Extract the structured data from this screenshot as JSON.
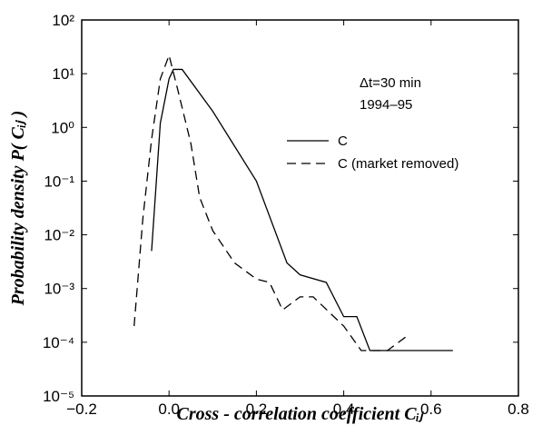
{
  "chart_data": {
    "type": "line",
    "xlabel": "Cross - correlation coefficient Cᵢⱼ",
    "ylabel": "Probability density P( Cᵢⱼ )",
    "annotations": [
      "Δt=30 min",
      "1994–95"
    ],
    "log_y": true,
    "xlim": [
      -0.2,
      0.8
    ],
    "ylim": [
      1e-05,
      100
    ],
    "xticks": [
      {
        "value": -0.2,
        "label": "−0.2"
      },
      {
        "value": 0,
        "label": "0.0"
      },
      0.2,
      0.4,
      0.6,
      0.8
    ],
    "yticks": [
      {
        "value": 1e-05,
        "label": "10⁻⁵"
      },
      {
        "value": 0.0001,
        "label": "10⁻⁴"
      },
      {
        "value": 0.001,
        "label": "10⁻³"
      },
      {
        "value": 0.01,
        "label": "10⁻²"
      },
      {
        "value": 0.1,
        "label": "10⁻¹"
      },
      {
        "value": 1,
        "label": "10⁰"
      },
      {
        "value": 10,
        "label": "10¹"
      },
      {
        "value": 100,
        "label": "10²"
      }
    ],
    "series": [
      {
        "name": "C",
        "color": "#000000",
        "dash": "solid",
        "x": [
          -0.04,
          -0.02,
          0.0,
          0.01,
          0.03,
          0.1,
          0.2,
          0.27,
          0.3,
          0.36,
          0.4,
          0.43,
          0.46,
          0.5,
          0.65
        ],
        "values": [
          0.005,
          1.2,
          8,
          12,
          12,
          2,
          0.1,
          0.003,
          0.0018,
          0.0013,
          0.0003,
          0.0003,
          7e-05,
          7e-05,
          7e-05
        ]
      },
      {
        "name": "C (market removed)",
        "color": "#000000",
        "dash": "dashed",
        "x": [
          -0.08,
          -0.06,
          -0.04,
          -0.02,
          0.0,
          0.02,
          0.05,
          0.07,
          0.1,
          0.15,
          0.2,
          0.23,
          0.26,
          0.3,
          0.33,
          0.4,
          0.44,
          0.5,
          0.55
        ],
        "values": [
          0.0002,
          0.02,
          0.6,
          8,
          22,
          5,
          0.5,
          0.05,
          0.012,
          0.003,
          0.0015,
          0.0013,
          0.0004,
          0.0007,
          0.0007,
          0.0002,
          7e-05,
          7e-05,
          0.00014
        ]
      }
    ]
  }
}
